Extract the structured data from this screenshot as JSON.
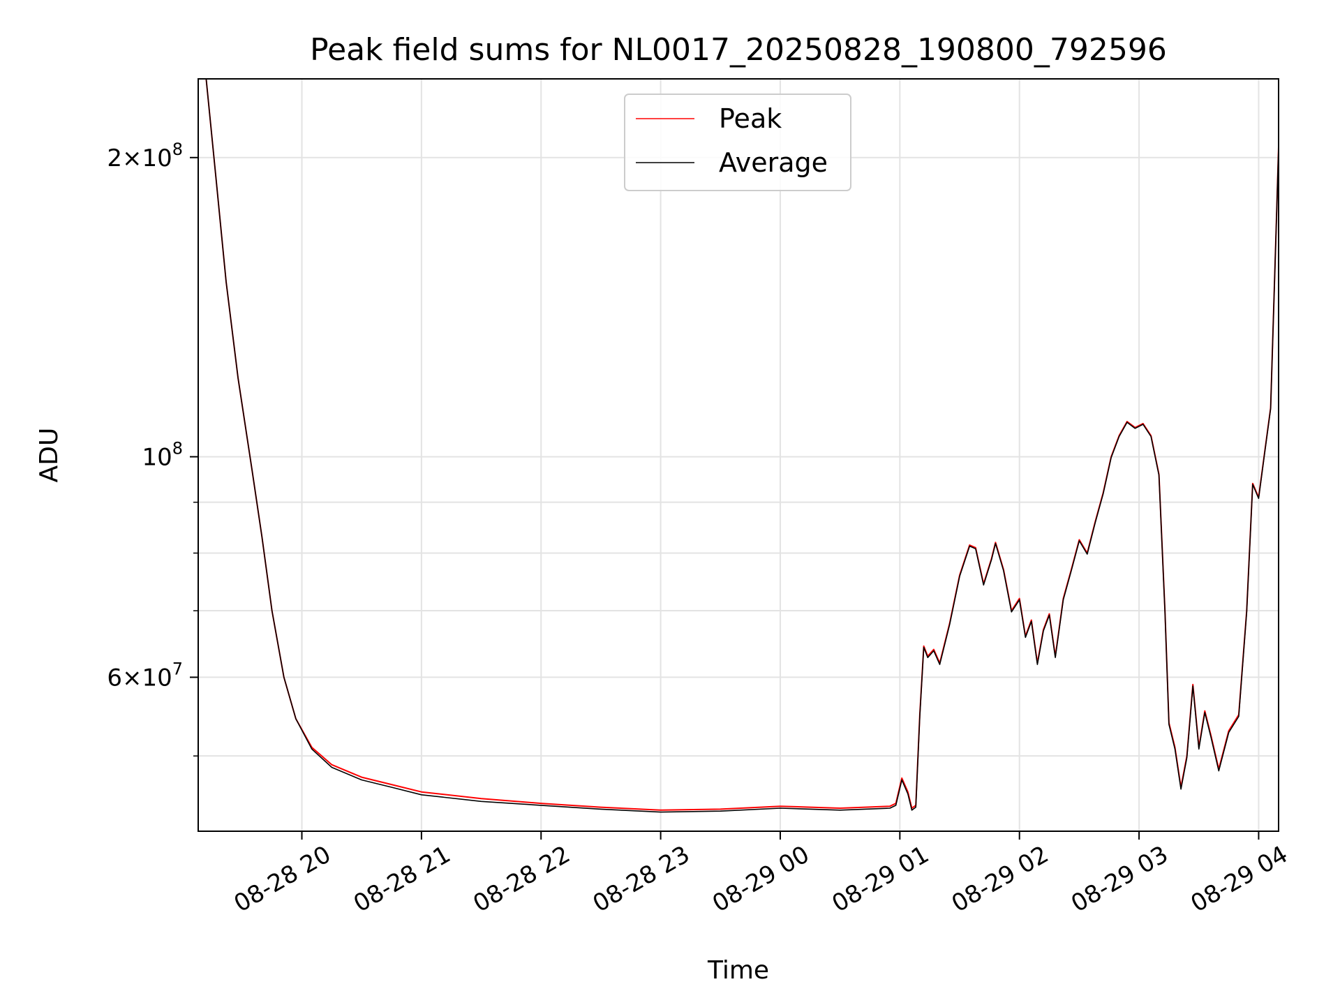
{
  "chart_data": {
    "type": "line",
    "title": "Peak field sums for NL0017_20250828_190800_792596",
    "xlabel": "Time",
    "ylabel": "ADU",
    "y_scale": "log",
    "ylim": [
      42000000,
      240000000
    ],
    "xlim": [
      "2025-08-28 19:08",
      "2025-08-29 04:10"
    ],
    "x_ticks": [
      "08-28 20",
      "08-28 21",
      "08-28 22",
      "08-28 23",
      "08-29 00",
      "08-29 01",
      "08-29 02",
      "08-29 03",
      "08-29 04"
    ],
    "y_ticks": [
      {
        "value": 200000000,
        "base": "2×10",
        "exp": "8"
      },
      {
        "value": 100000000,
        "base": "10",
        "exp": "8"
      },
      {
        "value": 60000000,
        "base": "6×10",
        "exp": "7"
      }
    ],
    "y_minor_ticks": [
      50000000,
      70000000,
      80000000,
      90000000
    ],
    "grid": true,
    "legend": {
      "position": "upper center"
    },
    "series": [
      {
        "name": "Peak",
        "color": "#ff0000",
        "points": [
          [
            "2025-08-28 19:12",
            240000000
          ],
          [
            "2025-08-28 19:17",
            190000000
          ],
          [
            "2025-08-28 19:22",
            150000000
          ],
          [
            "2025-08-28 19:28",
            120000000
          ],
          [
            "2025-08-28 19:35",
            97000000
          ],
          [
            "2025-08-28 19:40",
            83000000
          ],
          [
            "2025-08-28 19:45",
            70000000
          ],
          [
            "2025-08-28 19:51",
            60000000
          ],
          [
            "2025-08-28 19:57",
            54500000
          ],
          [
            "2025-08-28 20:05",
            51000000
          ],
          [
            "2025-08-28 20:15",
            49000000
          ],
          [
            "2025-08-28 20:30",
            47600000
          ],
          [
            "2025-08-28 20:45",
            46800000
          ],
          [
            "2025-08-28 21:00",
            46000000
          ],
          [
            "2025-08-28 21:30",
            45300000
          ],
          [
            "2025-08-28 22:00",
            44800000
          ],
          [
            "2025-08-28 22:30",
            44400000
          ],
          [
            "2025-08-28 23:00",
            44100000
          ],
          [
            "2025-08-28 23:30",
            44200000
          ],
          [
            "2025-08-29 00:00",
            44500000
          ],
          [
            "2025-08-29 00:30",
            44300000
          ],
          [
            "2025-08-29 00:55",
            44500000
          ],
          [
            "2025-08-29 00:58",
            44800000
          ],
          [
            "2025-08-29 01:01",
            47500000
          ],
          [
            "2025-08-29 01:04",
            46000000
          ],
          [
            "2025-08-29 01:06",
            44300000
          ],
          [
            "2025-08-29 01:08",
            44600000
          ],
          [
            "2025-08-29 01:10",
            55000000
          ],
          [
            "2025-08-29 01:12",
            64500000
          ],
          [
            "2025-08-29 01:14",
            63000000
          ],
          [
            "2025-08-29 01:17",
            64000000
          ],
          [
            "2025-08-29 01:20",
            62000000
          ],
          [
            "2025-08-29 01:25",
            68000000
          ],
          [
            "2025-08-29 01:30",
            76000000
          ],
          [
            "2025-08-29 01:35",
            81500000
          ],
          [
            "2025-08-29 01:38",
            81000000
          ],
          [
            "2025-08-29 01:42",
            74500000
          ],
          [
            "2025-08-29 01:46",
            79000000
          ],
          [
            "2025-08-29 01:48",
            82000000
          ],
          [
            "2025-08-29 01:52",
            77000000
          ],
          [
            "2025-08-29 01:56",
            70000000
          ],
          [
            "2025-08-29 02:00",
            72000000
          ],
          [
            "2025-08-29 02:03",
            66000000
          ],
          [
            "2025-08-29 02:06",
            68500000
          ],
          [
            "2025-08-29 02:09",
            62000000
          ],
          [
            "2025-08-29 02:12",
            67000000
          ],
          [
            "2025-08-29 02:15",
            69500000
          ],
          [
            "2025-08-29 02:18",
            63000000
          ],
          [
            "2025-08-29 02:22",
            72000000
          ],
          [
            "2025-08-29 02:26",
            77000000
          ],
          [
            "2025-08-29 02:30",
            82500000
          ],
          [
            "2025-08-29 02:34",
            80000000
          ],
          [
            "2025-08-29 02:38",
            86000000
          ],
          [
            "2025-08-29 02:42",
            92000000
          ],
          [
            "2025-08-29 02:46",
            100000000
          ],
          [
            "2025-08-29 02:50",
            105000000
          ],
          [
            "2025-08-29 02:54",
            108500000
          ],
          [
            "2025-08-29 02:58",
            107000000
          ],
          [
            "2025-08-29 03:02",
            108000000
          ],
          [
            "2025-08-29 03:06",
            105000000
          ],
          [
            "2025-08-29 03:10",
            96000000
          ],
          [
            "2025-08-29 03:13",
            70000000
          ],
          [
            "2025-08-29 03:15",
            54000000
          ],
          [
            "2025-08-29 03:18",
            51000000
          ],
          [
            "2025-08-29 03:21",
            46500000
          ],
          [
            "2025-08-29 03:24",
            50000000
          ],
          [
            "2025-08-29 03:27",
            59000000
          ],
          [
            "2025-08-29 03:30",
            51000000
          ],
          [
            "2025-08-29 03:33",
            55500000
          ],
          [
            "2025-08-29 03:36",
            52500000
          ],
          [
            "2025-08-29 03:40",
            48500000
          ],
          [
            "2025-08-29 03:45",
            53000000
          ],
          [
            "2025-08-29 03:50",
            55000000
          ],
          [
            "2025-08-29 03:54",
            70000000
          ],
          [
            "2025-08-29 03:57",
            94000000
          ],
          [
            "2025-08-29 04:00",
            91000000
          ],
          [
            "2025-08-29 04:03",
            101000000
          ],
          [
            "2025-08-29 04:06",
            112000000
          ],
          [
            "2025-08-29 04:09",
            175000000
          ],
          [
            "2025-08-29 04:11",
            240000000
          ]
        ]
      },
      {
        "name": "Average",
        "color": "#000000",
        "points": [
          [
            "2025-08-28 19:12",
            240000000
          ],
          [
            "2025-08-28 19:17",
            190000000
          ],
          [
            "2025-08-28 19:22",
            150000000
          ],
          [
            "2025-08-28 19:28",
            120000000
          ],
          [
            "2025-08-28 19:35",
            97000000
          ],
          [
            "2025-08-28 19:40",
            83000000
          ],
          [
            "2025-08-28 19:45",
            70000000
          ],
          [
            "2025-08-28 19:51",
            60000000
          ],
          [
            "2025-08-28 19:57",
            54500000
          ],
          [
            "2025-08-28 20:05",
            50800000
          ],
          [
            "2025-08-28 20:15",
            48700000
          ],
          [
            "2025-08-28 20:30",
            47300000
          ],
          [
            "2025-08-28 20:45",
            46500000
          ],
          [
            "2025-08-28 21:00",
            45700000
          ],
          [
            "2025-08-28 21:30",
            45000000
          ],
          [
            "2025-08-28 22:00",
            44600000
          ],
          [
            "2025-08-28 22:30",
            44200000
          ],
          [
            "2025-08-28 23:00",
            43900000
          ],
          [
            "2025-08-28 23:30",
            44000000
          ],
          [
            "2025-08-29 00:00",
            44300000
          ],
          [
            "2025-08-29 00:30",
            44100000
          ],
          [
            "2025-08-29 00:55",
            44300000
          ],
          [
            "2025-08-29 00:58",
            44600000
          ],
          [
            "2025-08-29 01:01",
            47300000
          ],
          [
            "2025-08-29 01:04",
            45800000
          ],
          [
            "2025-08-29 01:06",
            44100000
          ],
          [
            "2025-08-29 01:08",
            44400000
          ],
          [
            "2025-08-29 01:10",
            54800000
          ],
          [
            "2025-08-29 01:12",
            64300000
          ],
          [
            "2025-08-29 01:14",
            62800000
          ],
          [
            "2025-08-29 01:17",
            63800000
          ],
          [
            "2025-08-29 01:20",
            61800000
          ],
          [
            "2025-08-29 01:25",
            67800000
          ],
          [
            "2025-08-29 01:30",
            75800000
          ],
          [
            "2025-08-29 01:35",
            81300000
          ],
          [
            "2025-08-29 01:38",
            80800000
          ],
          [
            "2025-08-29 01:42",
            74300000
          ],
          [
            "2025-08-29 01:46",
            78800000
          ],
          [
            "2025-08-29 01:48",
            81800000
          ],
          [
            "2025-08-29 01:52",
            76800000
          ],
          [
            "2025-08-29 01:56",
            69800000
          ],
          [
            "2025-08-29 02:00",
            71800000
          ],
          [
            "2025-08-29 02:03",
            65800000
          ],
          [
            "2025-08-29 02:06",
            68300000
          ],
          [
            "2025-08-29 02:09",
            61800000
          ],
          [
            "2025-08-29 02:12",
            66800000
          ],
          [
            "2025-08-29 02:15",
            69300000
          ],
          [
            "2025-08-29 02:18",
            62800000
          ],
          [
            "2025-08-29 02:22",
            71800000
          ],
          [
            "2025-08-29 02:26",
            76800000
          ],
          [
            "2025-08-29 02:30",
            82300000
          ],
          [
            "2025-08-29 02:34",
            79800000
          ],
          [
            "2025-08-29 02:38",
            85800000
          ],
          [
            "2025-08-29 02:42",
            91800000
          ],
          [
            "2025-08-29 02:46",
            99800000
          ],
          [
            "2025-08-29 02:50",
            104800000
          ],
          [
            "2025-08-29 02:54",
            108300000
          ],
          [
            "2025-08-29 02:58",
            106800000
          ],
          [
            "2025-08-29 03:02",
            107800000
          ],
          [
            "2025-08-29 03:06",
            104800000
          ],
          [
            "2025-08-29 03:10",
            95800000
          ],
          [
            "2025-08-29 03:13",
            69800000
          ],
          [
            "2025-08-29 03:15",
            53800000
          ],
          [
            "2025-08-29 03:18",
            50800000
          ],
          [
            "2025-08-29 03:21",
            46300000
          ],
          [
            "2025-08-29 03:24",
            49800000
          ],
          [
            "2025-08-29 03:27",
            58800000
          ],
          [
            "2025-08-29 03:30",
            50800000
          ],
          [
            "2025-08-29 03:33",
            55300000
          ],
          [
            "2025-08-29 03:36",
            52300000
          ],
          [
            "2025-08-29 03:40",
            48300000
          ],
          [
            "2025-08-29 03:45",
            52800000
          ],
          [
            "2025-08-29 03:50",
            54800000
          ],
          [
            "2025-08-29 03:54",
            69800000
          ],
          [
            "2025-08-29 03:57",
            93800000
          ],
          [
            "2025-08-29 04:00",
            90800000
          ],
          [
            "2025-08-29 04:03",
            100800000
          ],
          [
            "2025-08-29 04:06",
            111800000
          ],
          [
            "2025-08-29 04:09",
            174800000
          ],
          [
            "2025-08-29 04:11",
            240000000
          ]
        ]
      }
    ]
  }
}
